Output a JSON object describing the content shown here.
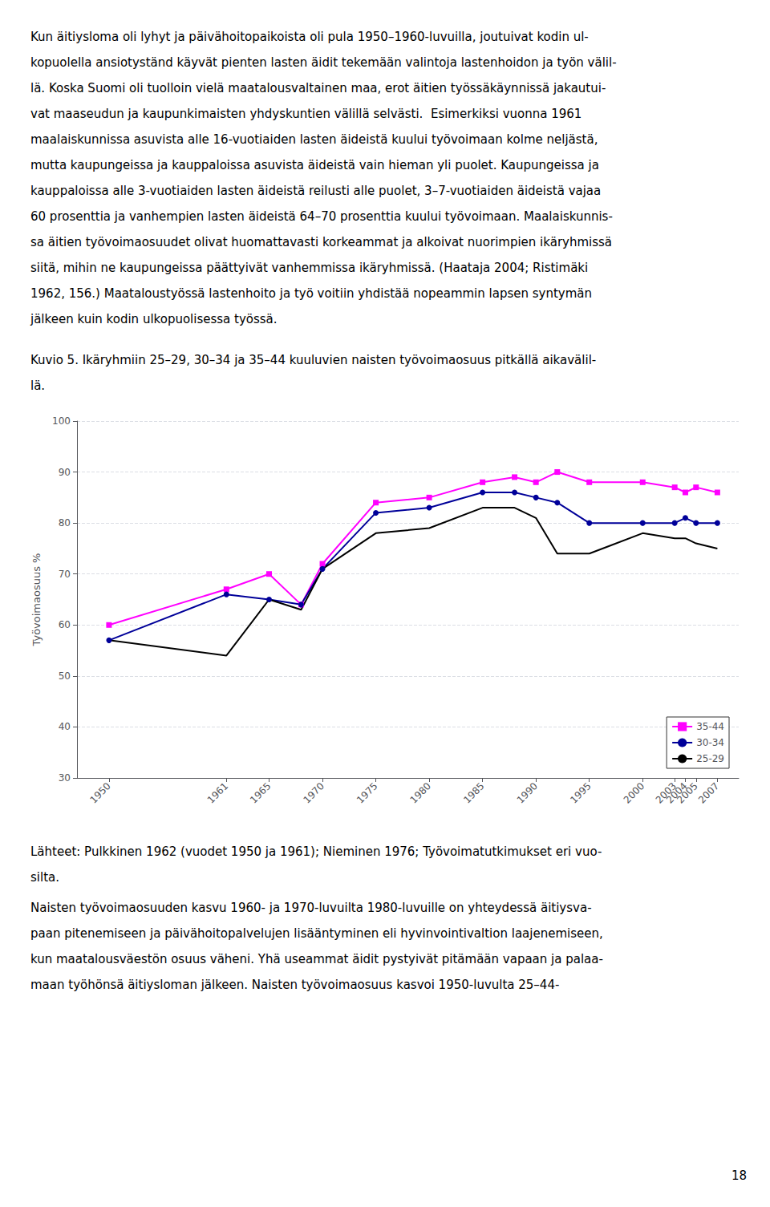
{
  "text_above": [
    "Kun äitiysloma oli lyhyt ja päivähoitopaikoista oli pula 1950–1960-luvuilla, joutuivat kodin ul-",
    "kopuolella ansiotyständ käyvät pienten lasten äidit tekemään valintoja lastenhoidon ja työn välil-",
    "lä. Koska Suomi oli tuolloin vielä maatalousvaltainen maa, erot äitien työssäkäynnissä jakautui-",
    "vat maaseudun ja kaupunkimaisten yhdyskuntien välillä selvästi.  Esimerkiksi vuonna 1961",
    "maalaiskunnissa asuvista alle 16-vuotiaiden lasten äideistä kuului työvoimaan kolme neljästä,",
    "mutta kaupungeissa ja kauppaloissa asuvista äideistä vain hieman yli puolet. Kaupungeissa ja",
    "kauppaloissa alle 3-vuotiaiden lasten äideistä reilusti alle puolet, 3–7-vuotiaiden äideistä vajaa",
    "60 prosenttia ja vanhempien lasten äideistä 64–70 prosenttia kuului työvoimaan. Maalaiskunnis-",
    "sa äitien työvoimaosuudet olivat huomattavasti korkeammat ja alkoivat nuorimpien ikäryhmissä",
    "siitä, mihin ne kaupungeissa päättyivät vanhemmissa ikäryhmissä. (Haataja 2004; Ristimäki",
    "1962, 156.) Maataloustyössä lastenhoito ja työ voitiin yhdistää nopeammin lapsen syntymän",
    "jälkeen kuin kodin ulkopuolisessa työssä."
  ],
  "caption": [
    "Kuvio 5. Ikäryhmiin 25–29, 30–34 ja 35–44 kuuluvien naisten työvoimaosuus pitkällä aikavälil-",
    "lä."
  ],
  "chart_data": {
    "type": "line",
    "y_label": "Työvoimaosuus %",
    "x": [
      1950,
      1961,
      1965,
      1968,
      1970,
      1975,
      1980,
      1985,
      1988,
      1990,
      1992,
      1995,
      2000,
      2003,
      2004,
      2005,
      2007
    ],
    "series": [
      {
        "name": "35-44",
        "color": "#FF00FF",
        "marker": "square",
        "line_style": "solid",
        "values": [
          60,
          67,
          70,
          64,
          72,
          84,
          85,
          88,
          89,
          88,
          90,
          88,
          88,
          87,
          86,
          87,
          86
        ]
      },
      {
        "name": "30-34",
        "color": "#000099",
        "marker": "circle",
        "line_style": "solid",
        "values": [
          57,
          66,
          65,
          64,
          71,
          82,
          83,
          86,
          86,
          85,
          84,
          80,
          80,
          80,
          81,
          80,
          80
        ]
      },
      {
        "name": "25-29",
        "color": "#000000",
        "marker": "none",
        "line_style": "solid",
        "values": [
          57,
          54,
          65,
          63,
          71,
          78,
          79,
          83,
          83,
          81,
          74,
          74,
          78,
          77,
          77,
          76,
          75
        ]
      }
    ],
    "xlim": [
      1947,
      2009
    ],
    "xticks": [
      1950,
      1961,
      1965,
      1970,
      1975,
      1980,
      1985,
      1990,
      1995,
      2000,
      2003,
      2004,
      2005,
      2007
    ],
    "ylim": [
      30,
      100
    ],
    "yticks": [
      30,
      40,
      50,
      60,
      70,
      80,
      90,
      100
    ],
    "grid": true,
    "legend": "lower right"
  },
  "sources": [
    "Lähteet: Pulkkinen 1962 (vuodet 1950 ja 1961); Nieminen 1976; Työvoimatutkimukset eri vuo-",
    "silta."
  ],
  "text_below": [
    "Naisten työvoimaosuuden kasvu 1960- ja 1970-luvuilta 1980-luvuille on yhteydessä äitiysva-",
    "paan pitenemiseen ja päivähoitopalvelujen lisääntyminen eli hyvinvointivaltion laajenemiseen,",
    "kun maatalousväestön osuus väheni. Yhä useammat äidit pystyivät pitämään vapaan ja palaa-",
    "maan työhönsä äitiysloman jälkeen. Naisten työvoimaosuus kasvoi 1950-luvulta 25–44-"
  ],
  "page_number": "18"
}
